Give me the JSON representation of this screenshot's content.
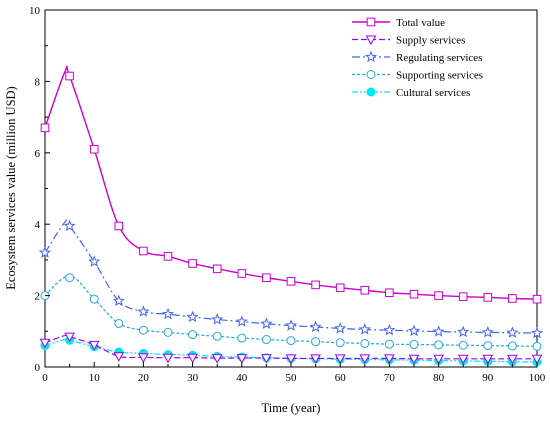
{
  "chart_data": {
    "type": "line",
    "xlabel": "Time (year)",
    "ylabel": "Ecosystem services value (million USD)",
    "xlim": [
      0,
      100
    ],
    "ylim": [
      0,
      10
    ],
    "x_ticks": [
      "0",
      "10",
      "20",
      "30",
      "40",
      "50",
      "60",
      "70",
      "80",
      "90",
      "100"
    ],
    "y_ticks": [
      "0",
      "2",
      "4",
      "6",
      "8",
      "10"
    ],
    "grid": false,
    "legend_position": "top-right",
    "x": [
      0,
      5,
      10,
      15,
      20,
      25,
      30,
      35,
      40,
      45,
      50,
      55,
      60,
      65,
      70,
      75,
      80,
      85,
      90,
      95,
      100
    ],
    "series": [
      {
        "name": "Total value",
        "color": "#cc00cc",
        "line_style": "solid",
        "marker": "square",
        "values": [
          6.7,
          8.15,
          6.1,
          3.95,
          3.25,
          3.1,
          2.9,
          2.75,
          2.62,
          2.5,
          2.4,
          2.3,
          2.22,
          2.15,
          2.08,
          2.04,
          2.0,
          1.97,
          1.95,
          1.92,
          1.9
        ],
        "peak": [
          4,
          8.25
        ]
      },
      {
        "name": "Supply services",
        "color": "#9900ff",
        "line_style": "dash",
        "marker": "triangle-down",
        "values": [
          0.68,
          0.85,
          0.62,
          0.3,
          0.27,
          0.26,
          0.26,
          0.25,
          0.25,
          0.25,
          0.24,
          0.24,
          0.24,
          0.24,
          0.24,
          0.23,
          0.23,
          0.23,
          0.23,
          0.23,
          0.23
        ],
        "peak": [
          4,
          0.88
        ]
      },
      {
        "name": "Regulating services",
        "color": "#4466ee",
        "line_style": "dashdot",
        "marker": "star",
        "values": [
          3.2,
          3.95,
          2.95,
          1.85,
          1.55,
          1.48,
          1.4,
          1.33,
          1.27,
          1.21,
          1.16,
          1.12,
          1.08,
          1.05,
          1.03,
          1.01,
          0.99,
          0.98,
          0.97,
          0.96,
          0.95
        ],
        "peak": [
          4,
          4.05
        ]
      },
      {
        "name": "Supporting services",
        "color": "#22aadd",
        "line_style": "shortdash",
        "marker": "circle",
        "values": [
          2.0,
          2.5,
          1.9,
          1.22,
          1.03,
          0.97,
          0.91,
          0.86,
          0.81,
          0.77,
          0.74,
          0.71,
          0.68,
          0.66,
          0.64,
          0.63,
          0.62,
          0.61,
          0.6,
          0.59,
          0.58
        ],
        "peak": [
          5,
          2.55
        ]
      },
      {
        "name": "Cultural services",
        "color": "#00e5ee",
        "line_style": "dashdotdot",
        "marker": "filled-circle",
        "values": [
          0.6,
          0.75,
          0.57,
          0.42,
          0.38,
          0.35,
          0.33,
          0.3,
          0.28,
          0.26,
          0.24,
          0.23,
          0.22,
          0.21,
          0.2,
          0.19,
          0.18,
          0.17,
          0.16,
          0.15,
          0.14
        ],
        "peak": [
          4,
          0.77
        ]
      }
    ]
  }
}
